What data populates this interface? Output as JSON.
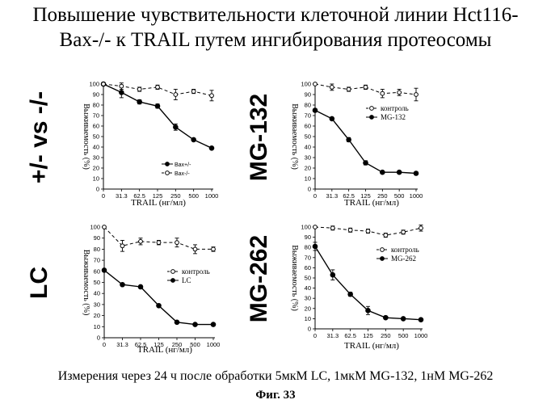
{
  "figure": {
    "title_line1": "Повышение чувствительности клеточной линии Hct116-",
    "title_line2": "Bax-/- к TRAIL путем ингибирования протеосомы",
    "footnote": "Измерения через 24 ч после обработки 5мкМ LC, 1мкМ MG-132, 1нМ MG-262",
    "figure_label": "Фиг. 33"
  },
  "chart_data": [
    {
      "type": "line",
      "side_label": "+/- vs -/-",
      "xlabel": "TRAIL (нг/мл)",
      "ylabel": "Выживаемость (%)",
      "categories": [
        "0",
        "31.3",
        "62.5",
        "125",
        "250",
        "500",
        "1000"
      ],
      "ylim": [
        0,
        100
      ],
      "yticks": [
        0,
        10,
        20,
        30,
        40,
        50,
        60,
        70,
        80,
        90,
        100
      ],
      "legend_position": "bottom-right",
      "series": [
        {
          "name": "Bax+/-",
          "style": "solid-filled",
          "values": [
            100,
            92,
            83,
            79,
            59,
            47,
            39
          ],
          "errors": [
            0,
            5,
            2,
            2,
            3,
            1,
            1
          ]
        },
        {
          "name": "Bax-/-",
          "style": "dashed-open",
          "values": [
            100,
            98,
            95,
            97,
            90,
            93,
            89
          ],
          "errors": [
            0,
            3,
            2,
            2,
            5,
            2,
            5
          ]
        }
      ]
    },
    {
      "type": "line",
      "side_label": "MG-132",
      "xlabel": "TRAIL (нг/мл)",
      "ylabel": "Выживаемость (%)",
      "categories": [
        "0",
        "31.3",
        "62.5",
        "125",
        "250",
        "500",
        "1000"
      ],
      "ylim": [
        0,
        100
      ],
      "yticks": [
        0,
        10,
        20,
        30,
        40,
        50,
        60,
        70,
        80,
        90,
        100
      ],
      "legend_position": "top-right",
      "series": [
        {
          "name": "контроль",
          "style": "dashed-open",
          "values": [
            100,
            97,
            95,
            97,
            91,
            92,
            90
          ],
          "errors": [
            0,
            3,
            2,
            2,
            4,
            3,
            6
          ]
        },
        {
          "name": "MG-132",
          "style": "solid-filled",
          "values": [
            75,
            67,
            47,
            25,
            16,
            16,
            15
          ],
          "errors": [
            0,
            1,
            2,
            2,
            1,
            1,
            1
          ]
        }
      ]
    },
    {
      "type": "line",
      "side_label": "LC",
      "xlabel": "TRAIL (нг/мл)",
      "ylabel": "Выживаемость (%)",
      "categories": [
        "0",
        "31.3",
        "62.5",
        "125",
        "250",
        "500",
        "1000"
      ],
      "ylim": [
        0,
        100
      ],
      "yticks": [
        0,
        10,
        20,
        30,
        40,
        50,
        60,
        70,
        80,
        90,
        100
      ],
      "legend_position": "right",
      "series": [
        {
          "name": "контроль",
          "style": "dashed-open",
          "values": [
            100,
            83,
            87,
            86,
            86,
            80,
            80
          ],
          "errors": [
            0,
            5,
            3,
            2,
            4,
            4,
            2
          ]
        },
        {
          "name": "LC",
          "style": "solid-filled",
          "values": [
            61,
            48,
            46,
            29,
            14,
            12,
            12
          ],
          "errors": [
            0,
            1,
            1,
            1,
            1,
            1,
            1
          ]
        }
      ]
    },
    {
      "type": "line",
      "side_label": "MG-262",
      "xlabel": "TRAIL (нг/мл)",
      "ylabel": "Выживаемость (%)",
      "categories": [
        "0",
        "31.3",
        "62.5",
        "125",
        "250",
        "500",
        "1000"
      ],
      "ylim": [
        0,
        100
      ],
      "yticks": [
        0,
        10,
        20,
        30,
        40,
        50,
        60,
        70,
        80,
        90,
        100
      ],
      "legend_position": "top-right",
      "series": [
        {
          "name": "контроль",
          "style": "dashed-open",
          "values": [
            100,
            99,
            97,
            96,
            92,
            95,
            99
          ],
          "errors": [
            0,
            2,
            2,
            2,
            2,
            2,
            3
          ]
        },
        {
          "name": "MG-262",
          "style": "solid-filled",
          "values": [
            81,
            53,
            34,
            18,
            11,
            10,
            9
          ],
          "errors": [
            4,
            5,
            2,
            4,
            1,
            1,
            1
          ]
        }
      ]
    }
  ]
}
